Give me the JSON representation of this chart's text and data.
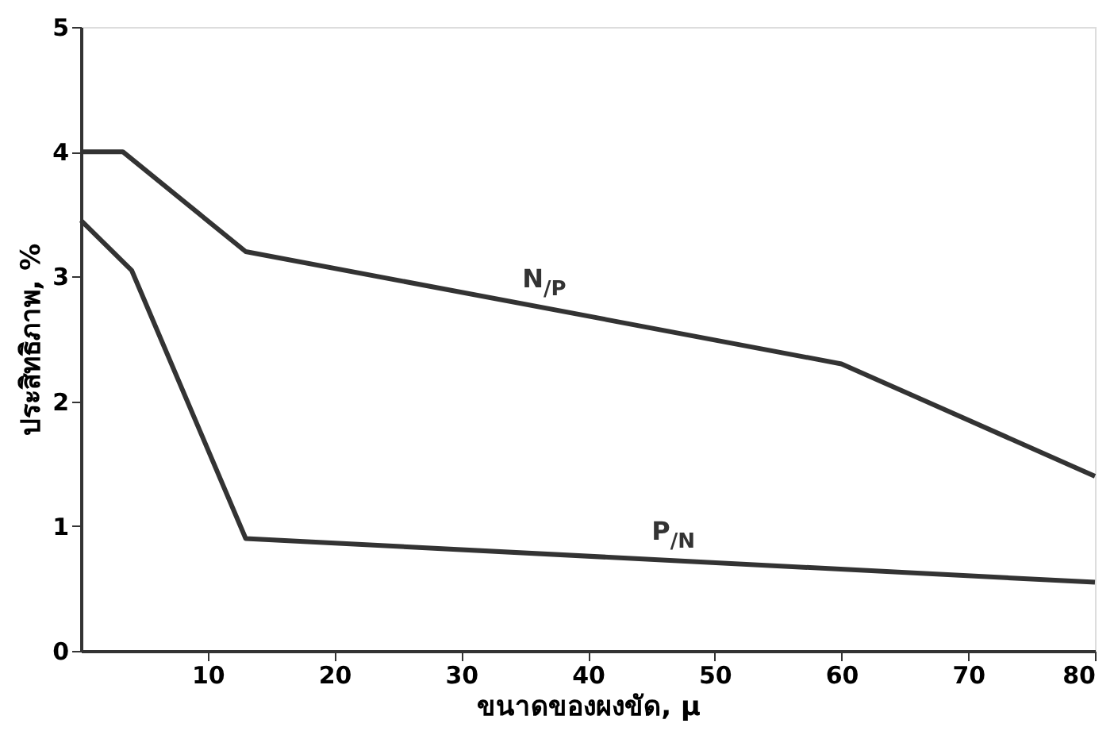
{
  "chart_data": {
    "type": "line",
    "xlabel": "ขนาดของผงขัด, μ",
    "ylabel": "ประสิทธิภาพ, %",
    "xlim": [
      0,
      80
    ],
    "xticks": [
      10,
      20,
      30,
      40,
      50,
      60,
      70,
      80
    ],
    "ylim": [
      0,
      5
    ],
    "yticks": [
      0,
      1,
      2,
      3,
      4,
      5
    ],
    "grid": false,
    "marker": "none",
    "line_style": "solid",
    "series": [
      {
        "name": "N$_{/P}$",
        "color": "#333333",
        "x": [
          0,
          3.3,
          13,
          60,
          80
        ],
        "values": [
          4.0,
          4.0,
          3.2,
          2.3,
          1.4
        ]
      },
      {
        "name": "P$_{/N}$",
        "color": "#333333",
        "x": [
          0,
          4,
          13,
          80
        ],
        "values": [
          3.45,
          3.05,
          0.9,
          0.55
        ]
      }
    ]
  }
}
